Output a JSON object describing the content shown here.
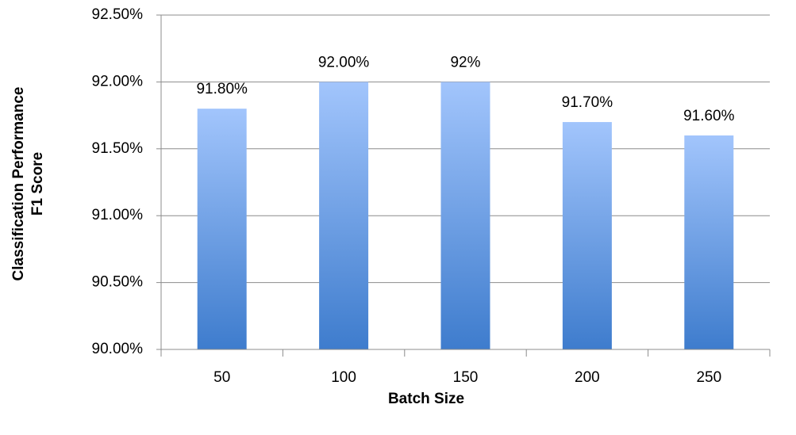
{
  "chart_data": {
    "type": "bar",
    "ylabel": [
      "Classification Performance",
      "F1 Score"
    ],
    "xlabel": "Batch Size",
    "categories": [
      "50",
      "100",
      "150",
      "200",
      "250"
    ],
    "values": [
      91.8,
      92.0,
      92.0,
      91.7,
      91.6
    ],
    "value_labels": [
      "91.80%",
      "92.00%",
      "92%",
      "91.70%",
      "91.60%"
    ],
    "color": [
      "#a2c5fc",
      "#3e7ccd"
    ],
    "ylim": [
      90,
      92.5
    ],
    "yticks": [
      {
        "value": 90,
        "label": "90.00%"
      },
      {
        "value": 90.5,
        "label": "90.50%"
      },
      {
        "value": 91,
        "label": "91.00%"
      },
      {
        "value": 91.5,
        "label": "91.50%"
      },
      {
        "value": 92,
        "label": "92.00%"
      },
      {
        "value": 92.5,
        "label": "92.50%"
      }
    ],
    "grid": true
  }
}
